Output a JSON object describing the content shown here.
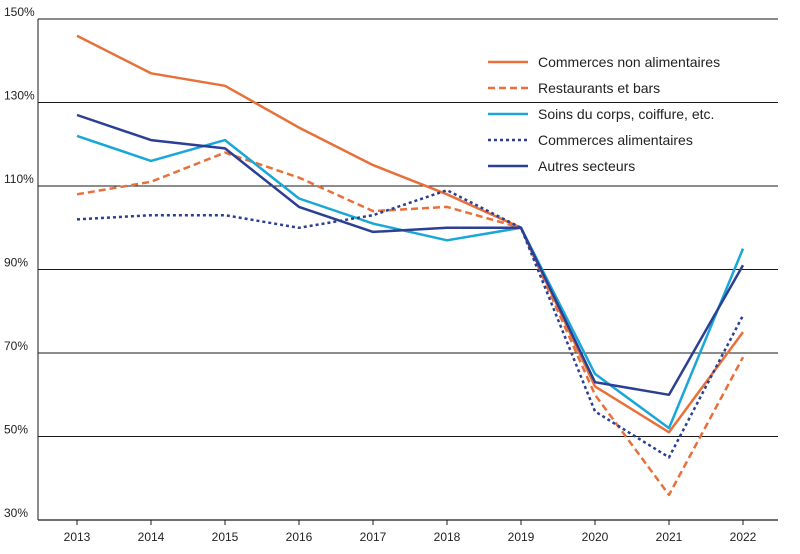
{
  "chart_data": {
    "type": "line",
    "title": "",
    "xlabel": "",
    "ylabel": "",
    "x": [
      "2013",
      "2014",
      "2015",
      "2016",
      "2017",
      "2018",
      "2019",
      "2020",
      "2021",
      "2022"
    ],
    "ylim": [
      30,
      150
    ],
    "y_ticks": [
      {
        "value": 30,
        "label": "30%"
      },
      {
        "value": 50,
        "label": "50%"
      },
      {
        "value": 70,
        "label": "70%"
      },
      {
        "value": 90,
        "label": "90%"
      },
      {
        "value": 110,
        "label": "110%"
      },
      {
        "value": 130,
        "label": "130%"
      },
      {
        "value": 150,
        "label": "150%"
      }
    ],
    "grid": "horizontal",
    "legend_position": "top-right",
    "series": [
      {
        "name": "Commerces non alimentaires",
        "color": "#e8703a",
        "dash": "solid",
        "values": [
          146,
          137,
          134,
          124,
          115,
          108,
          100,
          62,
          51,
          75
        ]
      },
      {
        "name": "Restaurants et bars",
        "color": "#e8703a",
        "dash": "dashed",
        "values": [
          108,
          111,
          118,
          112,
          104,
          105,
          100,
          60,
          36,
          69
        ]
      },
      {
        "name": "Soins du corps, coiffure, etc.",
        "color": "#1aa7d8",
        "dash": "solid",
        "values": [
          122,
          116,
          121,
          107,
          101,
          97,
          100,
          65,
          52,
          95
        ]
      },
      {
        "name": "Commerces alimentaires",
        "color": "#2b3f93",
        "dash": "dotted",
        "values": [
          102,
          103,
          103,
          100,
          103,
          109,
          100,
          56,
          45,
          79
        ]
      },
      {
        "name": "Autres secteurs",
        "color": "#2b3f93",
        "dash": "solid",
        "values": [
          127,
          121,
          119,
          105,
          99,
          100,
          100,
          63,
          60,
          91
        ]
      }
    ]
  }
}
